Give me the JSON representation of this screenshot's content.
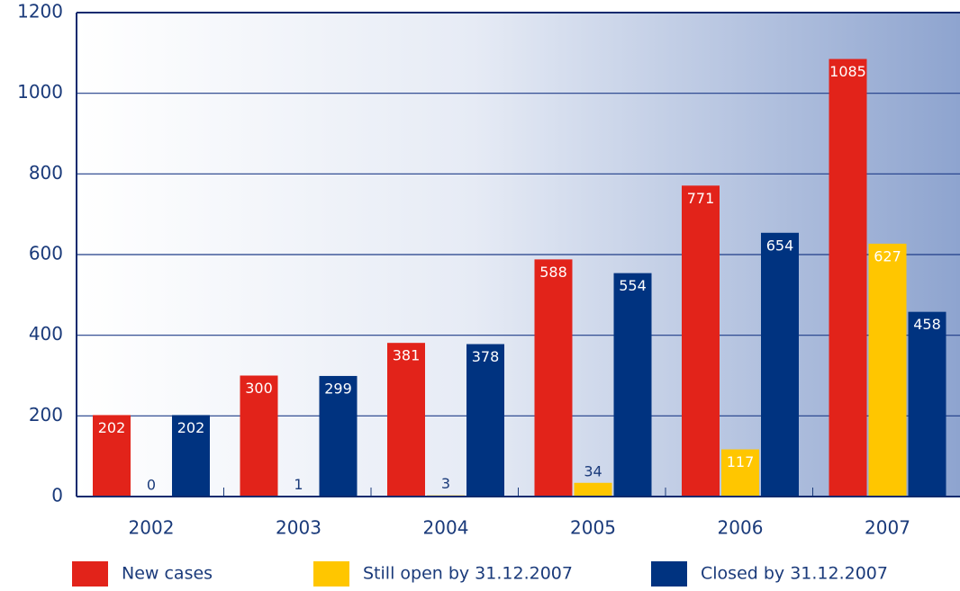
{
  "chart_data": {
    "type": "bar",
    "categories": [
      "2002",
      "2003",
      "2004",
      "2005",
      "2006",
      "2007"
    ],
    "series": [
      {
        "name": "New cases",
        "color": "#e2231a",
        "values": [
          202,
          300,
          381,
          588,
          771,
          1085
        ]
      },
      {
        "name": "Still open by 31.12.2007",
        "color": "#ffc600",
        "values": [
          0,
          1,
          3,
          34,
          117,
          627
        ]
      },
      {
        "name": "Closed by 31.12.2007",
        "color": "#003380",
        "values": [
          202,
          299,
          378,
          554,
          654,
          458
        ]
      }
    ],
    "ylim": [
      0,
      1200
    ],
    "yticks": [
      0,
      200,
      400,
      600,
      800,
      1000,
      1200
    ],
    "grid": true,
    "legend": "bottom"
  }
}
